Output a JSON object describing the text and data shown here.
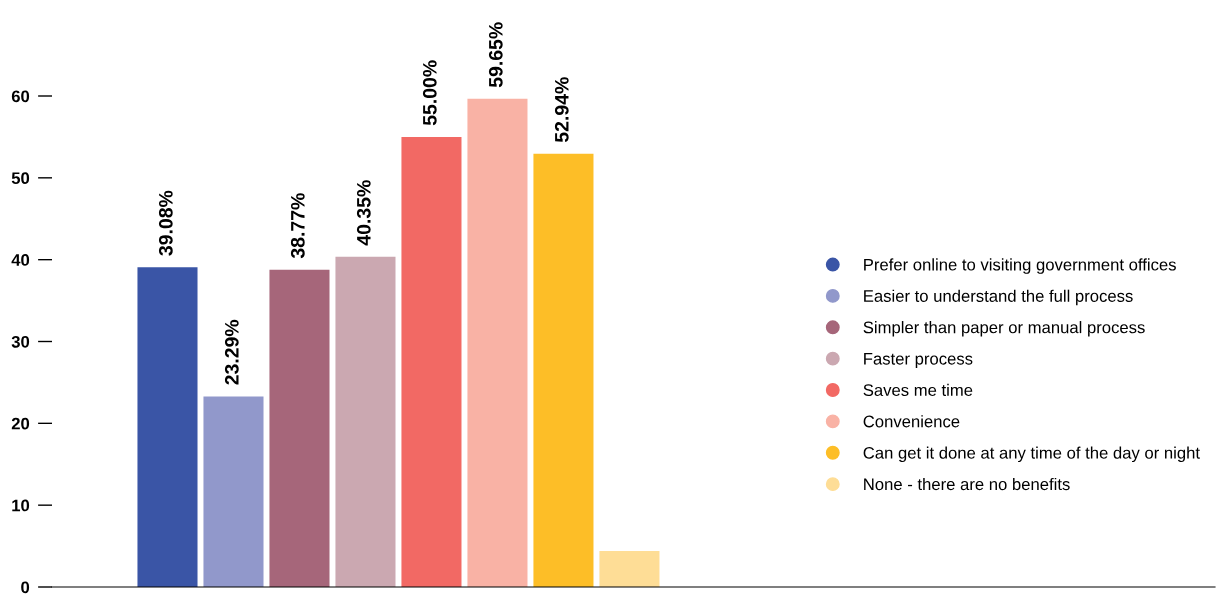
{
  "chart_data": {
    "type": "bar",
    "categories": [
      null
    ],
    "series": [
      {
        "name": "Prefer online to visiting government offices",
        "color": "#3a55a6",
        "values": [
          39.08
        ],
        "value_labels": [
          "39.08%"
        ]
      },
      {
        "name": "Easier to understand the full process",
        "color": "#9198cb",
        "values": [
          23.29
        ],
        "value_labels": [
          "23.29%"
        ]
      },
      {
        "name": "Simpler than paper or manual process",
        "color": "#a6667a",
        "values": [
          38.77
        ],
        "value_labels": [
          "38.77%"
        ]
      },
      {
        "name": "Faster process",
        "color": "#cba8b1",
        "values": [
          40.35
        ],
        "value_labels": [
          "40.35%"
        ]
      },
      {
        "name": "Saves me time",
        "color": "#f26964",
        "values": [
          55.0
        ],
        "value_labels": [
          "55.00%"
        ]
      },
      {
        "name": "Convenience",
        "color": "#f9b2a5",
        "values": [
          59.65
        ],
        "value_labels": [
          "59.65%"
        ]
      },
      {
        "name": "Can get it done at any time of the day or night",
        "color": "#fdbe27",
        "values": [
          52.94
        ],
        "value_labels": [
          "52.94%"
        ]
      },
      {
        "name": "None - there are no benefits",
        "color": "#fedd96",
        "values": [
          4.4
        ],
        "value_labels": [
          null
        ]
      }
    ],
    "ylim": [
      0,
      60
    ],
    "yticks": [
      0,
      10,
      20,
      30,
      40,
      50,
      60
    ],
    "grid": false,
    "legend": "right",
    "marker": "circle"
  }
}
